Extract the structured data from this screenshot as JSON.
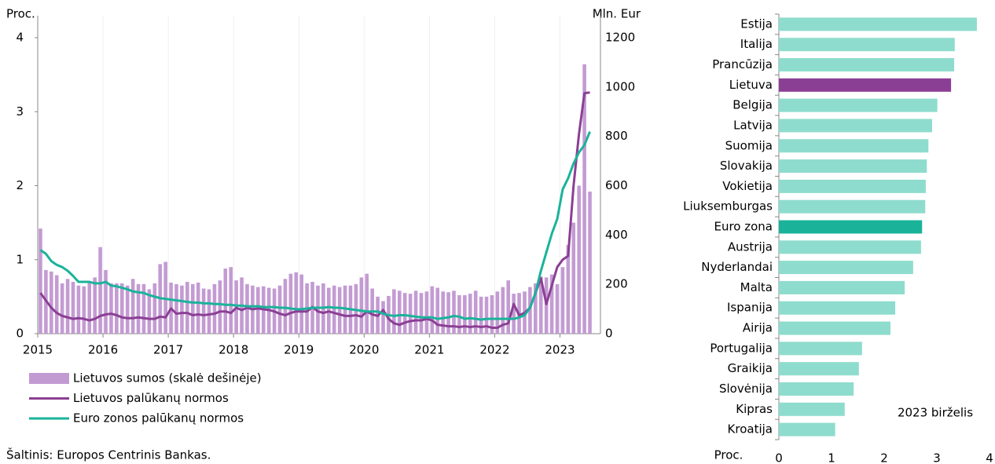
{
  "chart_data": [
    {
      "type": "bar-line",
      "y_label": "Proc.",
      "y2_label": "Mln. Eur",
      "categories": [
        "2015",
        null,
        null,
        null,
        null,
        null,
        null,
        null,
        null,
        null,
        null,
        null,
        "2016",
        null,
        null,
        null,
        null,
        null,
        null,
        null,
        null,
        null,
        null,
        null,
        "2017",
        null,
        null,
        null,
        null,
        null,
        null,
        null,
        null,
        null,
        null,
        null,
        "2018",
        null,
        null,
        null,
        null,
        null,
        null,
        null,
        null,
        null,
        null,
        null,
        "2019",
        null,
        null,
        null,
        null,
        null,
        null,
        null,
        null,
        null,
        null,
        null,
        "2020",
        null,
        null,
        null,
        null,
        null,
        null,
        null,
        null,
        null,
        null,
        null,
        "2021",
        null,
        null,
        null,
        null,
        null,
        null,
        null,
        null,
        null,
        null,
        null,
        "2022",
        null,
        null,
        null,
        null,
        null,
        null,
        null,
        null,
        null,
        null,
        null,
        "2023",
        null,
        null,
        null,
        null,
        null
      ],
      "ylim": [
        0,
        4
      ],
      "yticks": [
        0,
        1,
        2,
        3,
        4
      ],
      "y2lim": [
        0,
        1200
      ],
      "y2ticks": [
        0,
        200,
        400,
        600,
        800,
        1000,
        1200
      ],
      "series": [
        {
          "name": "Lietuvos sumos (skalė dešinėje)",
          "type": "bar",
          "axis": "y2",
          "color": "#c39bd3",
          "values": [
            426,
            258,
            252,
            237,
            204,
            222,
            210,
            195,
            192,
            210,
            228,
            351,
            258,
            204,
            204,
            204,
            195,
            222,
            201,
            201,
            180,
            204,
            282,
            291,
            207,
            201,
            195,
            210,
            201,
            207,
            183,
            180,
            201,
            216,
            264,
            270,
            216,
            228,
            201,
            195,
            189,
            192,
            186,
            183,
            195,
            222,
            243,
            249,
            240,
            204,
            210,
            195,
            204,
            186,
            195,
            189,
            195,
            195,
            201,
            228,
            243,
            183,
            150,
            132,
            153,
            180,
            174,
            165,
            162,
            174,
            165,
            171,
            192,
            186,
            171,
            168,
            174,
            156,
            156,
            162,
            174,
            150,
            150,
            156,
            171,
            189,
            216,
            162,
            165,
            171,
            189,
            204,
            231,
            228,
            240,
            201,
            270,
            360,
            450,
            600,
            1092,
            576
          ]
        },
        {
          "name": "Lietuvos palūkanų normos",
          "type": "line",
          "color": "#8b3f94",
          "values": [
            0.55,
            0.45,
            0.35,
            0.28,
            0.24,
            0.22,
            0.2,
            0.21,
            0.2,
            0.18,
            0.2,
            0.24,
            0.26,
            0.27,
            0.25,
            0.22,
            0.21,
            0.21,
            0.22,
            0.21,
            0.2,
            0.2,
            0.23,
            0.22,
            0.34,
            0.27,
            0.28,
            0.28,
            0.25,
            0.26,
            0.25,
            0.26,
            0.27,
            0.3,
            0.3,
            0.28,
            0.35,
            0.32,
            0.35,
            0.33,
            0.34,
            0.33,
            0.32,
            0.3,
            0.27,
            0.25,
            0.28,
            0.3,
            0.3,
            0.3,
            0.36,
            0.3,
            0.28,
            0.3,
            0.28,
            0.26,
            0.24,
            0.24,
            0.25,
            0.23,
            0.3,
            0.26,
            0.24,
            0.32,
            0.2,
            0.14,
            0.12,
            0.15,
            0.17,
            0.18,
            0.18,
            0.2,
            0.18,
            0.12,
            0.11,
            0.1,
            0.1,
            0.09,
            0.1,
            0.09,
            0.1,
            0.09,
            0.1,
            0.08,
            0.08,
            0.12,
            0.14,
            0.4,
            0.25,
            0.28,
            0.35,
            0.55,
            0.75,
            0.4,
            0.65,
            0.9,
            1.0,
            1.05,
            2.0,
            2.7,
            3.25,
            3.26
          ]
        },
        {
          "name": "Euro zonos palūkanų normos",
          "type": "line",
          "color": "#1ab39a",
          "values": [
            1.13,
            1.08,
            0.98,
            0.93,
            0.9,
            0.85,
            0.78,
            0.7,
            0.7,
            0.7,
            0.68,
            0.68,
            0.7,
            0.65,
            0.64,
            0.62,
            0.6,
            0.57,
            0.56,
            0.55,
            0.52,
            0.5,
            0.48,
            0.47,
            0.46,
            0.45,
            0.44,
            0.43,
            0.42,
            0.42,
            0.41,
            0.41,
            0.4,
            0.4,
            0.39,
            0.39,
            0.38,
            0.38,
            0.37,
            0.37,
            0.37,
            0.36,
            0.36,
            0.36,
            0.35,
            0.35,
            0.34,
            0.33,
            0.33,
            0.34,
            0.35,
            0.35,
            0.35,
            0.36,
            0.35,
            0.35,
            0.34,
            0.33,
            0.32,
            0.31,
            0.3,
            0.3,
            0.3,
            0.27,
            0.25,
            0.24,
            0.25,
            0.25,
            0.24,
            0.23,
            0.22,
            0.22,
            0.22,
            0.2,
            0.21,
            0.22,
            0.24,
            0.23,
            0.2,
            0.21,
            0.2,
            0.19,
            0.2,
            0.2,
            0.2,
            0.2,
            0.2,
            0.2,
            0.22,
            0.25,
            0.35,
            0.55,
            0.85,
            1.1,
            1.35,
            1.55,
            1.95,
            2.1,
            2.3,
            2.45,
            2.55,
            2.73
          ]
        }
      ],
      "source": "Šaltinis: Europos Centrinis Bankas."
    },
    {
      "type": "hbar",
      "categories": [
        "Estija",
        "Italija",
        "Prancūzija",
        "Lietuva",
        "Belgija",
        "Latvija",
        "Suomija",
        "Slovakija",
        "Vokietija",
        "Liuksemburgas",
        "Euro zona",
        "Austrija",
        "Nyderlandai",
        "Malta",
        "Ispanija",
        "Airija",
        "Portugalija",
        "Graikija",
        "Slovėnija",
        "Kipras",
        "Kroatija"
      ],
      "values": [
        3.76,
        3.34,
        3.33,
        3.27,
        3.01,
        2.91,
        2.84,
        2.81,
        2.79,
        2.78,
        2.72,
        2.7,
        2.55,
        2.39,
        2.21,
        2.12,
        1.58,
        1.52,
        1.42,
        1.25,
        1.07
      ],
      "colors": [
        "#8edccd",
        "#8edccd",
        "#8edccd",
        "#8b3f94",
        "#8edccd",
        "#8edccd",
        "#8edccd",
        "#8edccd",
        "#8edccd",
        "#8edccd",
        "#1ab39a",
        "#8edccd",
        "#8edccd",
        "#8edccd",
        "#8edccd",
        "#8edccd",
        "#8edccd",
        "#8edccd",
        "#8edccd",
        "#8edccd",
        "#8edccd"
      ],
      "xlim": [
        0,
        4
      ],
      "xticks": [
        0,
        1,
        2,
        3,
        4
      ],
      "x_label": "Proc.",
      "annotation": "2023 birželis"
    }
  ]
}
